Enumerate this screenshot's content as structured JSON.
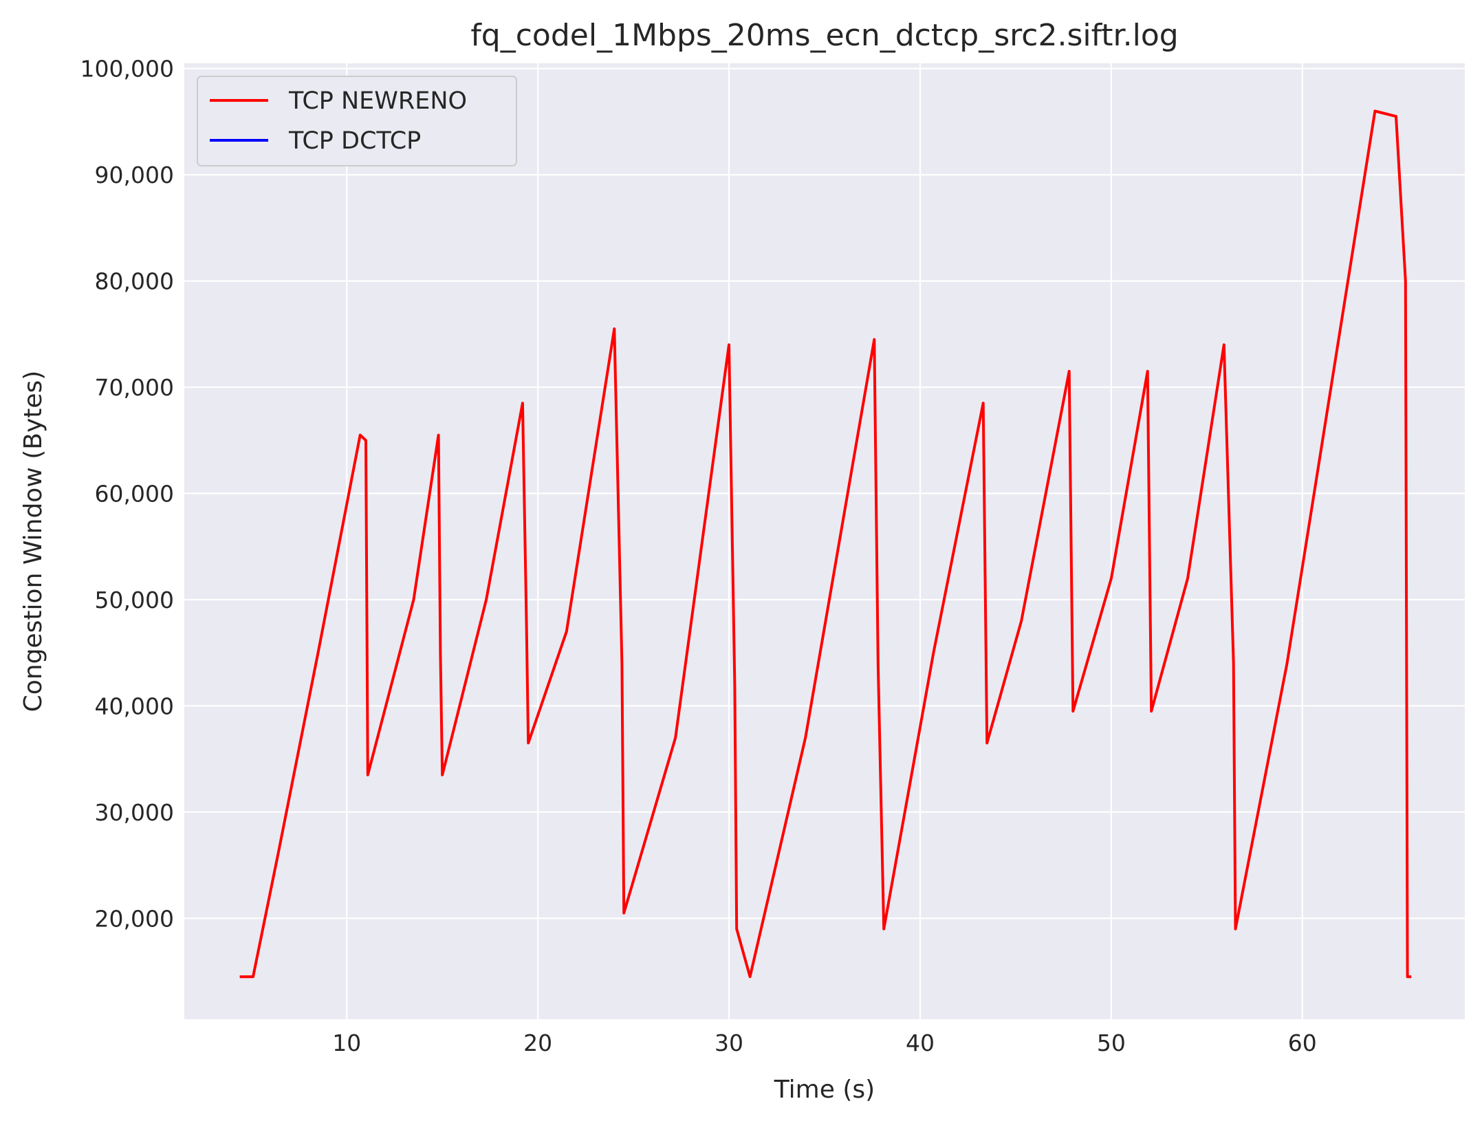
{
  "chart_data": {
    "type": "line",
    "title": "fq_codel_1Mbps_20ms_ecn_dctcp_src2.siftr.log",
    "xlabel": "Time (s)",
    "ylabel": "Congestion Window (Bytes)",
    "xlim": [
      1.5,
      68.5
    ],
    "ylim": [
      10500,
      100500
    ],
    "x_ticks": [
      10,
      20,
      30,
      40,
      50,
      60
    ],
    "x_tick_labels": [
      "10",
      "20",
      "30",
      "40",
      "50",
      "60"
    ],
    "y_ticks": [
      20000,
      30000,
      40000,
      50000,
      60000,
      70000,
      80000,
      90000,
      100000
    ],
    "y_tick_labels": [
      "20,000",
      "30,000",
      "40,000",
      "50,000",
      "60,000",
      "70,000",
      "80,000",
      "90,000",
      "100,000"
    ],
    "grid": true,
    "legend_position": "upper-left",
    "colors": {
      "background": "#eaeaf2",
      "grid": "#ffffff",
      "tcp_newreno": "#ff0000",
      "tcp_dctcp": "#0000ff"
    },
    "legend": [
      {
        "label": "TCP NEWRENO",
        "color": "#ff0000"
      },
      {
        "label": "TCP DCTCP",
        "color": "#0000ff"
      }
    ],
    "series": [
      {
        "name": "TCP NEWRENO",
        "color": "#ff0000",
        "x": [
          4.4,
          5.1,
          6.4,
          8.5,
          10.7,
          11.0,
          11.1,
          13.5,
          14.8,
          14.9,
          15.0,
          17.3,
          19.2,
          19.4,
          19.5,
          21.5,
          24.0,
          24.4,
          24.5,
          27.2,
          30.0,
          30.3,
          30.4,
          31.1,
          34.0,
          37.6,
          37.8,
          38.1,
          40.7,
          43.3,
          43.5,
          45.3,
          47.8,
          48.0,
          50.0,
          51.9,
          52.1,
          54.0,
          55.9,
          56.4,
          56.5,
          59.2,
          63.8,
          64.9,
          65.4,
          65.5,
          65.7
        ],
        "y": [
          14500,
          14500,
          26000,
          45000,
          65500,
          65000,
          33500,
          50000,
          65500,
          45000,
          33500,
          50000,
          68500,
          48000,
          36500,
          47000,
          75500,
          44000,
          20500,
          37000,
          74000,
          42000,
          19000,
          14500,
          37000,
          74500,
          44000,
          19000,
          45000,
          68500,
          36500,
          48000,
          71500,
          39500,
          52000,
          71500,
          39500,
          52000,
          74000,
          44000,
          19000,
          44000,
          96000,
          95500,
          80000,
          14500,
          14500
        ]
      },
      {
        "name": "TCP DCTCP",
        "color": "#0000ff",
        "x": [],
        "y": []
      }
    ]
  }
}
